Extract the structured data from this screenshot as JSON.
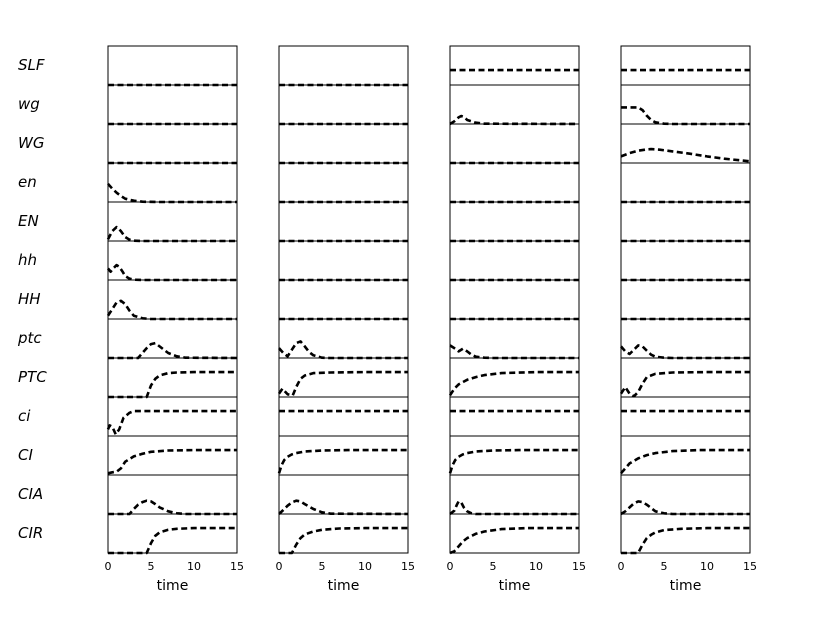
{
  "chart_data": {
    "type": "line",
    "variables": [
      "SLF",
      "wg",
      "WG",
      "en",
      "EN",
      "hh",
      "HH",
      "ptc",
      "PTC",
      "ci",
      "CI",
      "CIA",
      "CIR"
    ],
    "xlabel": "time",
    "xlim": [
      0,
      15
    ],
    "xticks": [
      "0",
      "5",
      "10",
      "15"
    ],
    "ylim": [
      0,
      1
    ],
    "panels": [
      {
        "series": {
          "SLF": {
            "x": [
              0,
              15
            ],
            "y": [
              0,
              0
            ]
          },
          "wg": {
            "x": [
              0,
              15
            ],
            "y": [
              0,
              0
            ]
          },
          "WG": {
            "x": [
              0,
              15
            ],
            "y": [
              0,
              0
            ]
          },
          "en": {
            "x": [
              0,
              0.5,
              1,
              1.5,
              2,
              3,
              4,
              6,
              8,
              15
            ],
            "y": [
              0.55,
              0.4,
              0.28,
              0.18,
              0.1,
              0.04,
              0.01,
              0,
              0,
              0
            ]
          },
          "EN": {
            "x": [
              0,
              0.5,
              1,
              1.5,
              2,
              2.5,
              3,
              4,
              15
            ],
            "y": [
              0.05,
              0.3,
              0.42,
              0.3,
              0.12,
              0.04,
              0.01,
              0,
              0
            ]
          },
          "hh": {
            "x": [
              0,
              0.3,
              0.6,
              1,
              1.3,
              1.7,
              2,
              2.5,
              3,
              4,
              15
            ],
            "y": [
              0.35,
              0.25,
              0.35,
              0.45,
              0.4,
              0.25,
              0.12,
              0.04,
              0.01,
              0,
              0
            ]
          },
          "HH": {
            "x": [
              0,
              0.5,
              1,
              1.5,
              2,
              2.5,
              3,
              4,
              5,
              15
            ],
            "y": [
              0.1,
              0.3,
              0.5,
              0.55,
              0.45,
              0.25,
              0.1,
              0.02,
              0,
              0
            ]
          },
          "ptc": {
            "x": [
              0,
              3.5,
              4,
              4.5,
              5,
              5.5,
              6,
              7,
              8,
              9,
              15
            ],
            "y": [
              0,
              0,
              0.15,
              0.3,
              0.42,
              0.45,
              0.35,
              0.15,
              0.05,
              0.01,
              0
            ]
          },
          "PTC": {
            "x": [
              0,
              4.5,
              5,
              5.5,
              6,
              7,
              8,
              10,
              15
            ],
            "y": [
              0,
              0,
              0.35,
              0.55,
              0.65,
              0.72,
              0.74,
              0.75,
              0.75
            ]
          },
          "ci": {
            "x": [
              0,
              0.2,
              0.5,
              0.9,
              1.3,
              1.8,
              2.5,
              3,
              15
            ],
            "y": [
              0.2,
              0.32,
              0.28,
              0.05,
              0.2,
              0.55,
              0.7,
              0.75,
              0.75
            ]
          },
          "CI": {
            "x": [
              0,
              0.5,
              1,
              1.5,
              2,
              3,
              4,
              5,
              7,
              10,
              15
            ],
            "y": [
              0.05,
              0.08,
              0.1,
              0.2,
              0.4,
              0.56,
              0.64,
              0.7,
              0.74,
              0.75,
              0.75
            ]
          },
          "CIA": {
            "x": [
              0,
              2.5,
              3,
              3.5,
              4,
              4.5,
              5,
              5.5,
              6,
              7,
              8,
              9,
              15
            ],
            "y": [
              0,
              0,
              0.15,
              0.28,
              0.36,
              0.4,
              0.38,
              0.3,
              0.2,
              0.08,
              0.02,
              0,
              0
            ]
          },
          "CIR": {
            "x": [
              0,
              4.5,
              5,
              5.5,
              6,
              7,
              8,
              10,
              15
            ],
            "y": [
              0,
              0,
              0.3,
              0.52,
              0.62,
              0.7,
              0.73,
              0.75,
              0.75
            ]
          }
        }
      },
      {
        "series": {
          "SLF": {
            "x": [
              0,
              15
            ],
            "y": [
              0,
              0
            ]
          },
          "wg": {
            "x": [
              0,
              15
            ],
            "y": [
              0,
              0
            ]
          },
          "WG": {
            "x": [
              0,
              15
            ],
            "y": [
              0,
              0
            ]
          },
          "en": {
            "x": [
              0,
              15
            ],
            "y": [
              0,
              0
            ]
          },
          "EN": {
            "x": [
              0,
              15
            ],
            "y": [
              0,
              0
            ]
          },
          "hh": {
            "x": [
              0,
              15
            ],
            "y": [
              0,
              0
            ]
          },
          "HH": {
            "x": [
              0,
              15
            ],
            "y": [
              0,
              0
            ]
          },
          "ptc": {
            "x": [
              0,
              0.5,
              1,
              1.5,
              2,
              2.5,
              3,
              3.5,
              4,
              5,
              6,
              15
            ],
            "y": [
              0.3,
              0.15,
              0.05,
              0.25,
              0.45,
              0.5,
              0.35,
              0.18,
              0.08,
              0.01,
              0,
              0
            ]
          },
          "PTC": {
            "x": [
              0,
              0.4,
              1,
              1.6,
              2,
              2.5,
              3,
              4,
              6,
              10,
              15
            ],
            "y": [
              0.1,
              0.25,
              0.08,
              0.05,
              0.3,
              0.55,
              0.65,
              0.72,
              0.74,
              0.75,
              0.75
            ]
          },
          "ci": {
            "x": [
              0,
              15
            ],
            "y": [
              0.75,
              0.75
            ]
          },
          "CI": {
            "x": [
              0,
              0.3,
              0.6,
              1,
              1.5,
              2,
              3,
              5,
              8,
              15
            ],
            "y": [
              0.05,
              0.3,
              0.45,
              0.55,
              0.62,
              0.66,
              0.71,
              0.74,
              0.75,
              0.75
            ]
          },
          "CIA": {
            "x": [
              0,
              0.5,
              1,
              1.5,
              2,
              2.5,
              3,
              4,
              5,
              6,
              15
            ],
            "y": [
              0,
              0.12,
              0.25,
              0.35,
              0.4,
              0.38,
              0.3,
              0.15,
              0.05,
              0.01,
              0
            ]
          },
          "CIR": {
            "x": [
              0,
              1.5,
              2,
              2.5,
              3,
              4,
              5,
              7,
              10,
              15
            ],
            "y": [
              0,
              0,
              0.25,
              0.45,
              0.56,
              0.65,
              0.7,
              0.74,
              0.75,
              0.75
            ]
          }
        }
      },
      {
        "series": {
          "SLF": {
            "x": [
              0,
              15
            ],
            "y": [
              0.45,
              0.45
            ]
          },
          "wg": {
            "x": [
              0,
              0.5,
              1,
              1.3,
              1.7,
              2,
              3,
              4,
              15
            ],
            "y": [
              0,
              0.08,
              0.2,
              0.24,
              0.2,
              0.12,
              0.04,
              0.01,
              0
            ]
          },
          "WG": {
            "x": [
              0,
              15
            ],
            "y": [
              0,
              0
            ]
          },
          "en": {
            "x": [
              0,
              15
            ],
            "y": [
              0,
              0
            ]
          },
          "EN": {
            "x": [
              0,
              15
            ],
            "y": [
              0,
              0
            ]
          },
          "hh": {
            "x": [
              0,
              15
            ],
            "y": [
              0,
              0
            ]
          },
          "HH": {
            "x": [
              0,
              15
            ],
            "y": [
              0,
              0
            ]
          },
          "ptc": {
            "x": [
              0,
              0.5,
              1,
              1.5,
              2,
              2.5,
              3,
              4,
              5,
              15
            ],
            "y": [
              0.38,
              0.3,
              0.2,
              0.28,
              0.2,
              0.1,
              0.04,
              0.01,
              0,
              0
            ]
          },
          "PTC": {
            "x": [
              0,
              0.5,
              1,
              2,
              3,
              4,
              6,
              10,
              15
            ],
            "y": [
              0.05,
              0.25,
              0.38,
              0.52,
              0.6,
              0.66,
              0.72,
              0.75,
              0.75
            ]
          },
          "ci": {
            "x": [
              0,
              15
            ],
            "y": [
              0.75,
              0.75
            ]
          },
          "CI": {
            "x": [
              0,
              0.3,
              0.6,
              1,
              1.5,
              2,
              3,
              5,
              8,
              15
            ],
            "y": [
              0.05,
              0.3,
              0.45,
              0.55,
              0.62,
              0.66,
              0.71,
              0.74,
              0.75,
              0.75
            ]
          },
          "CIA": {
            "x": [
              0,
              0.5,
              0.8,
              1,
              1.3,
              1.6,
              2,
              2.5,
              3,
              4,
              15
            ],
            "y": [
              0,
              0.1,
              0.28,
              0.38,
              0.35,
              0.2,
              0.08,
              0.02,
              0,
              0,
              0
            ]
          },
          "CIR": {
            "x": [
              0,
              0.5,
              1,
              1.5,
              2,
              3,
              4,
              6,
              9,
              15
            ],
            "y": [
              0,
              0.05,
              0.2,
              0.35,
              0.45,
              0.58,
              0.65,
              0.72,
              0.75,
              0.75
            ]
          }
        }
      },
      {
        "series": {
          "SLF": {
            "x": [
              0,
              15
            ],
            "y": [
              0.45,
              0.45
            ]
          },
          "wg": {
            "x": [
              0,
              2,
              2.5,
              3,
              3.5,
              4,
              5,
              6,
              15
            ],
            "y": [
              0.5,
              0.5,
              0.42,
              0.25,
              0.12,
              0.05,
              0.01,
              0,
              0
            ]
          },
          "WG": {
            "x": [
              0,
              1,
              2,
              3,
              3.5,
              4.5,
              6,
              8,
              10,
              12,
              15
            ],
            "y": [
              0.2,
              0.3,
              0.37,
              0.41,
              0.42,
              0.4,
              0.35,
              0.28,
              0.2,
              0.13,
              0.05
            ]
          },
          "en": {
            "x": [
              0,
              15
            ],
            "y": [
              0,
              0
            ]
          },
          "EN": {
            "x": [
              0,
              15
            ],
            "y": [
              0,
              0
            ]
          },
          "hh": {
            "x": [
              0,
              15
            ],
            "y": [
              0,
              0
            ]
          },
          "HH": {
            "x": [
              0,
              15
            ],
            "y": [
              0,
              0
            ]
          },
          "ptc": {
            "x": [
              0,
              0.5,
              1,
              1.5,
              2,
              2.5,
              3,
              3.5,
              4,
              5,
              6,
              15
            ],
            "y": [
              0.35,
              0.2,
              0.12,
              0.25,
              0.38,
              0.35,
              0.22,
              0.1,
              0.04,
              0.01,
              0,
              0
            ]
          },
          "PTC": {
            "x": [
              0,
              0.5,
              1,
              1.5,
              2,
              2.5,
              3,
              4,
              6,
              10,
              15
            ],
            "y": [
              0.1,
              0.3,
              0.1,
              0.02,
              0.15,
              0.4,
              0.6,
              0.7,
              0.74,
              0.75,
              0.75
            ]
          },
          "ci": {
            "x": [
              0,
              15
            ],
            "y": [
              0.75,
              0.75
            ]
          },
          "CI": {
            "x": [
              0,
              0.5,
              1,
              2,
              3,
              4,
              6,
              9,
              15
            ],
            "y": [
              0.05,
              0.2,
              0.35,
              0.5,
              0.6,
              0.66,
              0.72,
              0.75,
              0.75
            ]
          },
          "CIA": {
            "x": [
              0,
              0.5,
              1,
              1.5,
              2,
              2.5,
              3,
              3.5,
              4,
              5,
              6,
              15
            ],
            "y": [
              0,
              0.08,
              0.2,
              0.32,
              0.38,
              0.36,
              0.28,
              0.18,
              0.08,
              0.02,
              0,
              0
            ]
          },
          "CIR": {
            "x": [
              0,
              2,
              2.5,
              3,
              3.5,
              4,
              5,
              7,
              10,
              15
            ],
            "y": [
              0,
              0,
              0.25,
              0.45,
              0.55,
              0.62,
              0.69,
              0.73,
              0.75,
              0.75
            ]
          }
        }
      }
    ]
  }
}
